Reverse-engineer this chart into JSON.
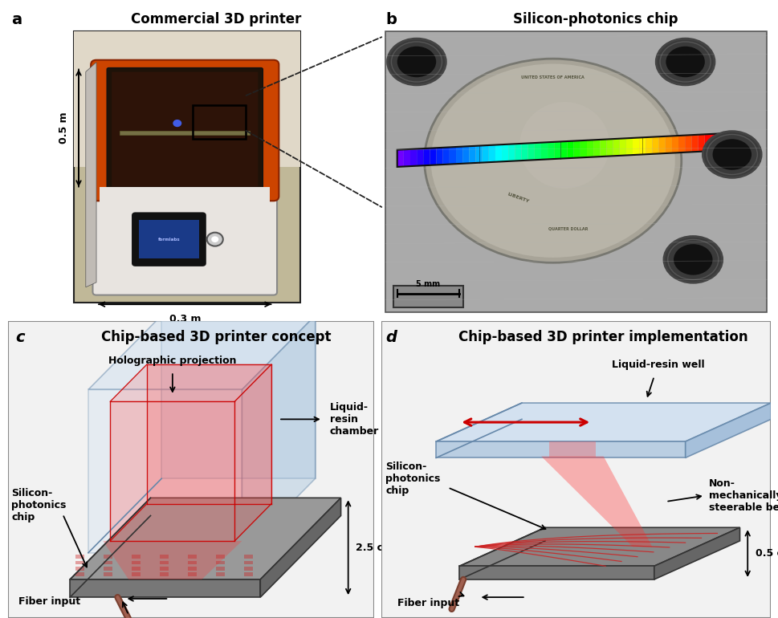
{
  "fig_width": 9.7,
  "fig_height": 7.7,
  "bg_color": "#ffffff",
  "panel_labels": [
    "a",
    "b",
    "c",
    "d"
  ],
  "panel_titles": [
    "Commercial 3D printer",
    "Silicon-photonics chip",
    "Chip-based 3D printer concept",
    "Chip-based 3D printer implementation"
  ],
  "colors": {
    "printer_orange": "#d4500a",
    "printer_white": "#e8e5e0",
    "printer_dark_interior": "#3a2a1a",
    "printer_gray_base": "#d8d4cf",
    "printer_black_panel": "#1a1a1a",
    "printer_screen_blue": "#2244aa",
    "printer_bg_light": "#c8c0b0",
    "metal_bg": "#aaaaaa",
    "coin_silver": "#c0bcb0",
    "coin_dark": "#888070",
    "glass_blue": "#b8ccdd",
    "glass_edge": "#5577aa",
    "red_fill": "#dd2222",
    "red_alpha": 0.35,
    "chip_gray": "#888888",
    "chip_dark": "#555555",
    "chip_light": "#aaaaaa",
    "fiber_brown": "#7a4030",
    "well_blue": "#c0d5e8",
    "well_edge": "#6688aa",
    "arrow_black": "#111111",
    "red_arrow": "#cc0000",
    "dashed_color": "#333333"
  },
  "annot_fontsize": 9,
  "label_fontsize": 14,
  "title_fontsize": 12
}
